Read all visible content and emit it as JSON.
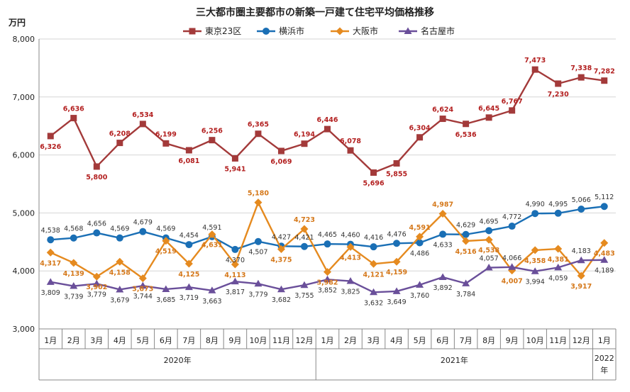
{
  "chart_data": {
    "type": "line",
    "title": "三大都市圏主要都市の新築一戸建て住宅平均価格推移",
    "ylabel": "万円",
    "ylim": [
      3000,
      8000
    ],
    "yticks": [
      "3,000",
      "4,000",
      "5,000",
      "6,000",
      "7,000",
      "8,000"
    ],
    "yticks_values": [
      3000,
      4000,
      5000,
      6000,
      7000,
      8000
    ],
    "grid": true,
    "legend_position": "top",
    "categories": [
      "1月",
      "2月",
      "3月",
      "4月",
      "5月",
      "6月",
      "7月",
      "8月",
      "9月",
      "10月",
      "11月",
      "12月",
      "1月",
      "2月",
      "3月",
      "4月",
      "5月",
      "6月",
      "7月",
      "8月",
      "9月",
      "10月",
      "11月",
      "12月",
      "1月"
    ],
    "year_groups": [
      {
        "label": "2020年",
        "start": 0,
        "end": 11
      },
      {
        "label": "2021年",
        "start": 12,
        "end": 23
      },
      {
        "label": "2022年",
        "start": 24,
        "end": 24
      }
    ],
    "series": [
      {
        "name": "東京23区",
        "color": "#a33a3a",
        "marker": "square",
        "values": [
          6326,
          6636,
          5800,
          6208,
          6534,
          6199,
          6081,
          6256,
          5941,
          6365,
          6069,
          6194,
          6446,
          6078,
          5696,
          5855,
          6304,
          6624,
          6536,
          6645,
          6767,
          7473,
          7230,
          7338,
          7282
        ],
        "labels": [
          "6,326",
          "6,636",
          "5,800",
          "6,208",
          "6,534",
          "6,199",
          "6,081",
          "6,256",
          "5,941",
          "6,365",
          "6,069",
          "6,194",
          "6,446",
          "6,078",
          "5,696",
          "5,855",
          "6,304",
          "6,624",
          "6,536",
          "6,645",
          "6,767",
          "7,473",
          "7,230",
          "7,338",
          "7,282"
        ]
      },
      {
        "name": "横浜市",
        "color": "#1a6fb5",
        "marker": "circle",
        "values": [
          4538,
          4568,
          4656,
          4569,
          4679,
          4569,
          4454,
          4591,
          4370,
          4507,
          4427,
          4421,
          4465,
          4460,
          4416,
          4476,
          4486,
          4633,
          4629,
          4695,
          4772,
          4990,
          4995,
          5066,
          5112
        ],
        "labels": [
          "4,538",
          "4,568",
          "4,656",
          "4,569",
          "4,679",
          "4,569",
          "4,454",
          "4,591",
          "4,370",
          "4,507",
          "4,427",
          "4,421",
          "4,465",
          "4,460",
          "4,416",
          "4,476",
          "4,486",
          "4,633",
          "4,629",
          "4,695",
          "4,772",
          "4,990",
          "4,995",
          "5,066",
          "5,112"
        ]
      },
      {
        "name": "大阪市",
        "color": "#e58a1f",
        "marker": "diamond",
        "values": [
          4317,
          4139,
          3902,
          4158,
          3873,
          4519,
          4125,
          4631,
          4113,
          5180,
          4375,
          4723,
          3982,
          4413,
          4121,
          4159,
          4591,
          4987,
          4516,
          4538,
          4007,
          4358,
          4381,
          3917,
          4483
        ],
        "labels": [
          "4,317",
          "4,139",
          "3,902",
          "4,158",
          "3,873",
          "4,519",
          "4,125",
          "4,631",
          "4,113",
          "5,180",
          "4,375",
          "4,723",
          "3,982",
          "4,413",
          "4,121",
          "4,159",
          "4,591",
          "4,987",
          "4,516",
          "4,538",
          "4,007",
          "4,358",
          "4,381",
          "3,917",
          "4,483"
        ]
      },
      {
        "name": "名古屋市",
        "color": "#6a4f9a",
        "marker": "triangle",
        "values": [
          3809,
          3739,
          3779,
          3679,
          3744,
          3685,
          3719,
          3663,
          3817,
          3779,
          3682,
          3755,
          3852,
          3825,
          3632,
          3649,
          3760,
          3892,
          3784,
          4057,
          4066,
          3994,
          4059,
          4183,
          4189
        ],
        "labels": [
          "3,809",
          "3,739",
          "3,779",
          "3,679",
          "3,744",
          "3,685",
          "3,719",
          "3,663",
          "3,817",
          "3,779",
          "3,682",
          "3,755",
          "3,852",
          "3,825",
          "3,632",
          "3,649",
          "3,760",
          "3,892",
          "3,784",
          "4,057",
          "4,066",
          "3,994",
          "4,059",
          "4,183",
          "4,189"
        ]
      }
    ]
  }
}
